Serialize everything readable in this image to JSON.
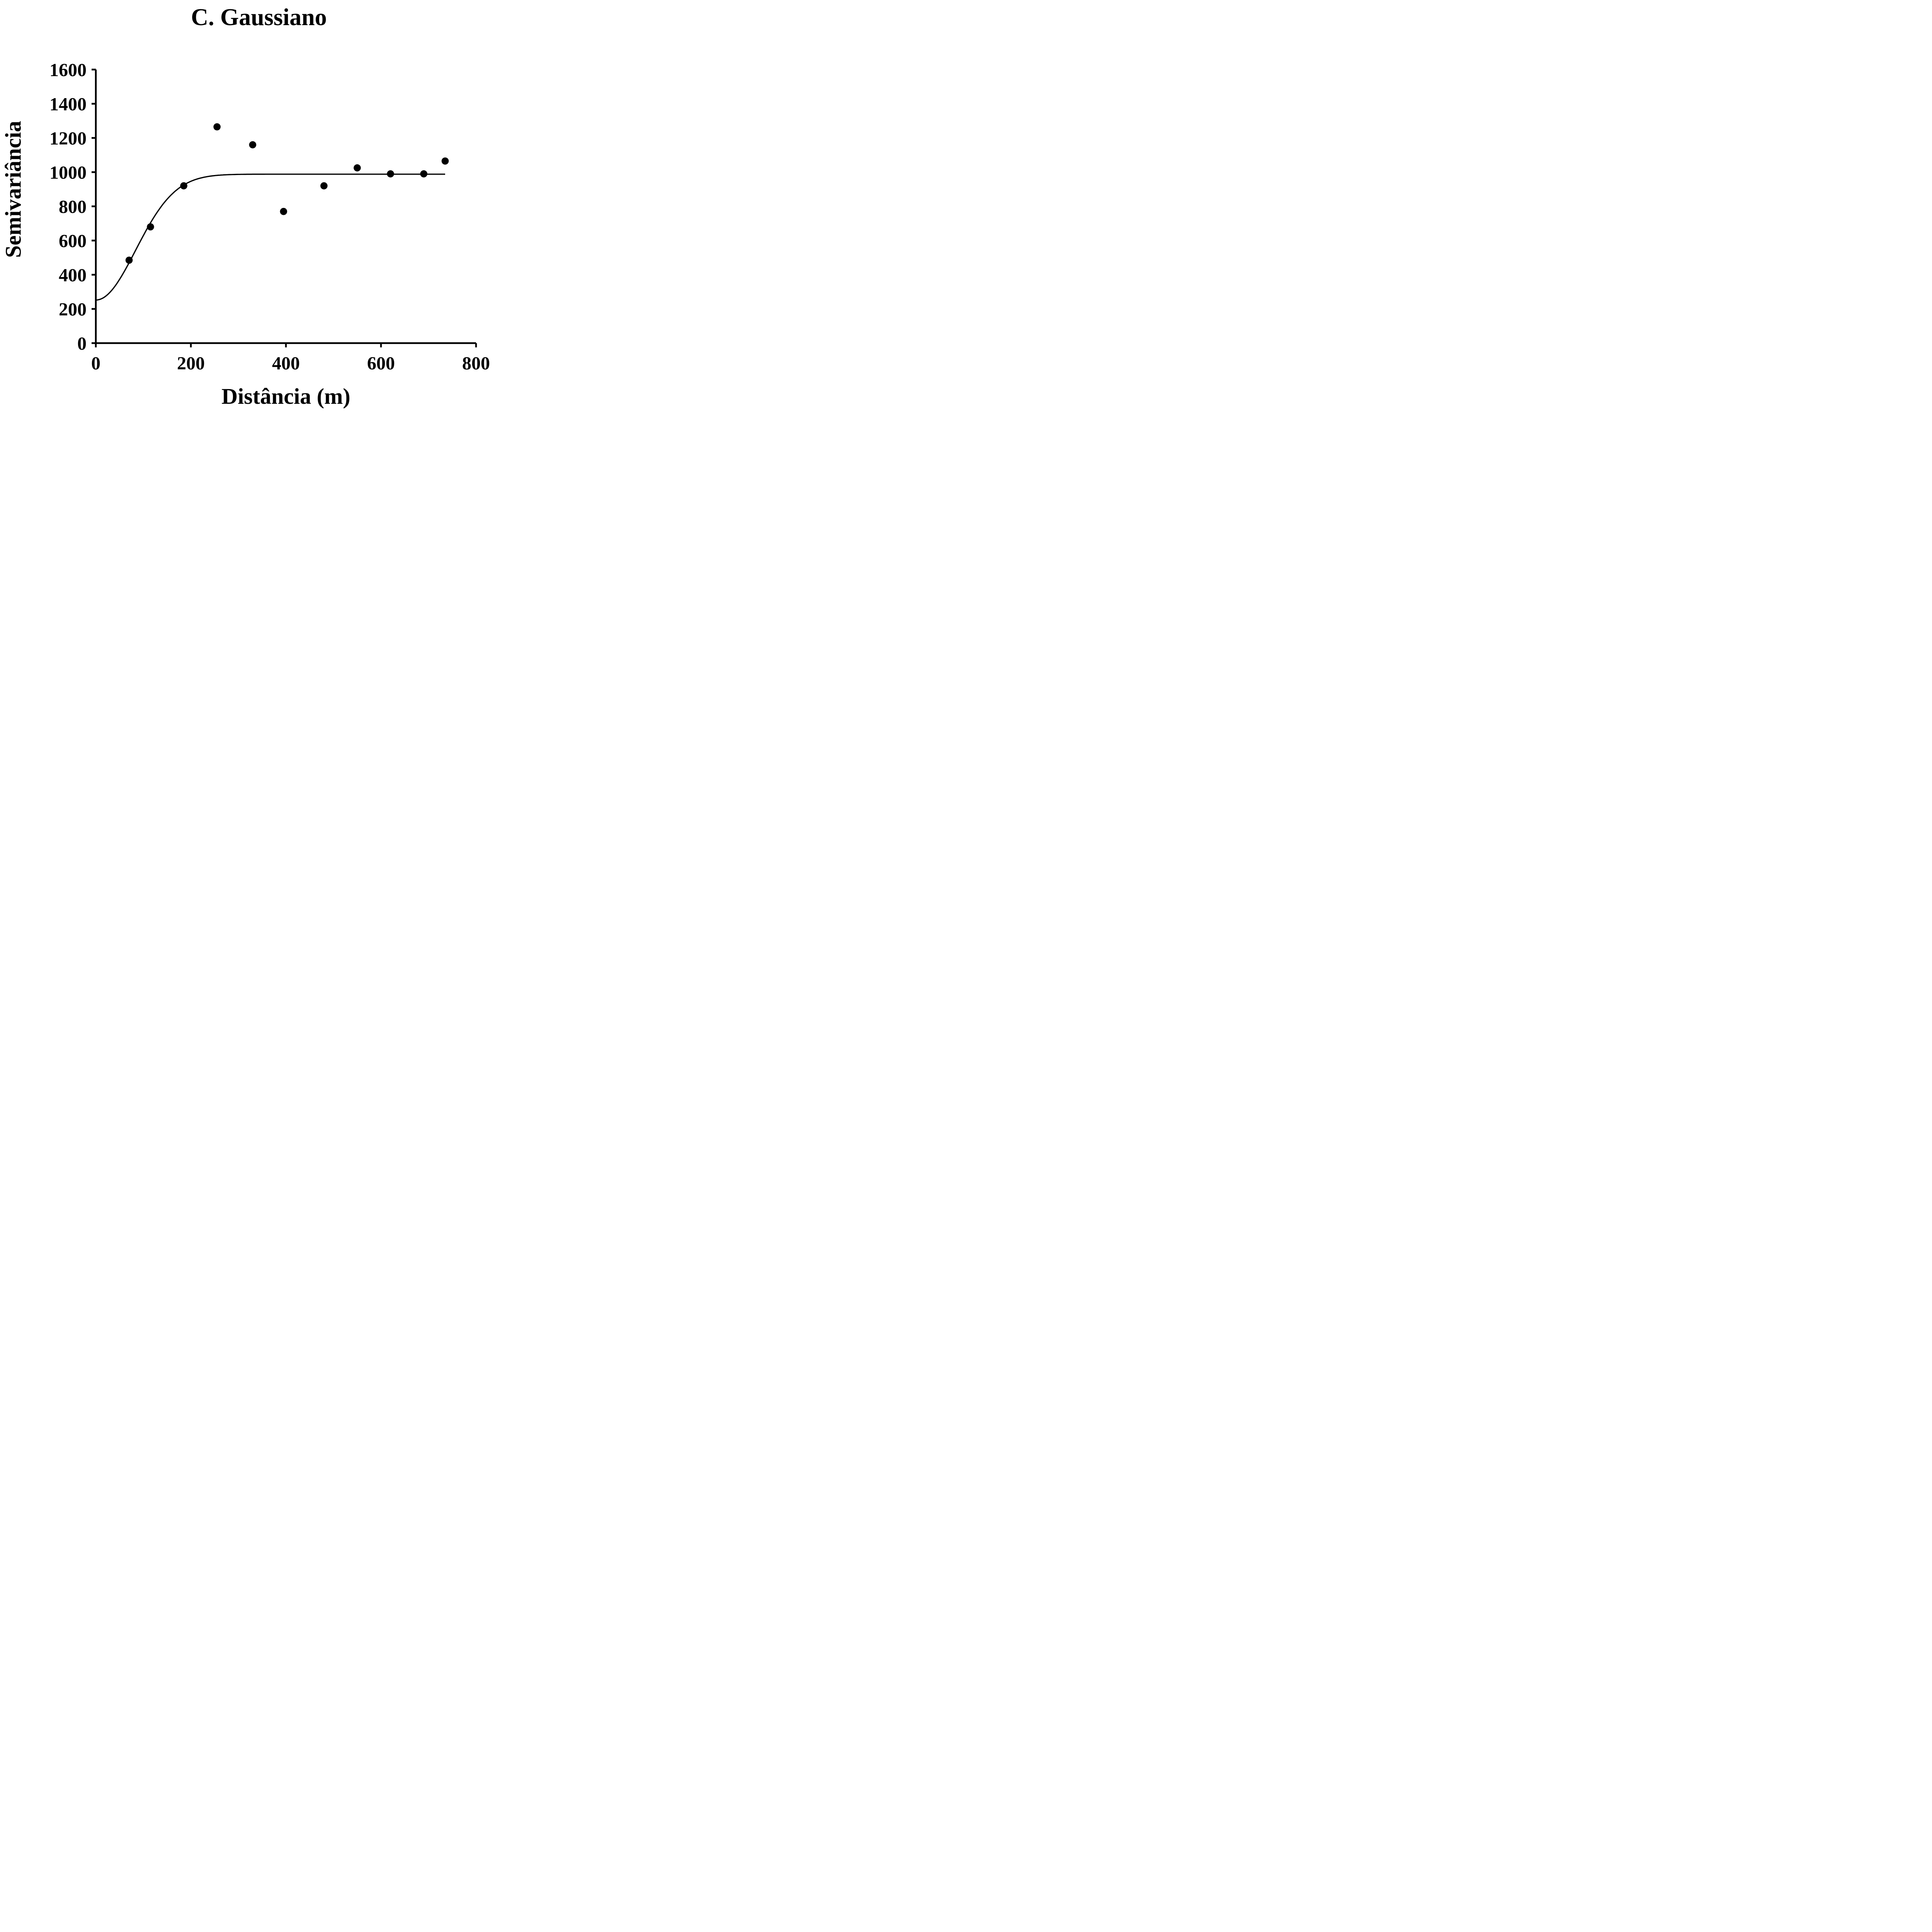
{
  "title": "C. Gaussiano",
  "colors": {
    "foreground": "#000000",
    "background": "#ffffff"
  },
  "chart_data": {
    "type": "scatter",
    "title": "C. Gaussiano",
    "xlabel": "Distância (m)",
    "ylabel": "Semivariância",
    "xlim": [
      0,
      800
    ],
    "ylim": [
      0,
      1600
    ],
    "x_ticks": [
      0,
      200,
      400,
      600,
      800
    ],
    "y_ticks": [
      0,
      200,
      400,
      600,
      800,
      1000,
      1200,
      1400,
      1600
    ],
    "grid": false,
    "legend": "none",
    "points": [
      {
        "x": 70,
        "y": 485
      },
      {
        "x": 115,
        "y": 680
      },
      {
        "x": 185,
        "y": 920
      },
      {
        "x": 255,
        "y": 1265
      },
      {
        "x": 330,
        "y": 1160
      },
      {
        "x": 395,
        "y": 770
      },
      {
        "x": 480,
        "y": 920
      },
      {
        "x": 550,
        "y": 1025
      },
      {
        "x": 620,
        "y": 990
      },
      {
        "x": 690,
        "y": 990
      },
      {
        "x": 735,
        "y": 1065
      }
    ],
    "model_curve": {
      "model": "gaussian",
      "nugget": 252,
      "sill": 988,
      "shape_a": 118,
      "x_start": 0,
      "x_end": 735
    }
  }
}
